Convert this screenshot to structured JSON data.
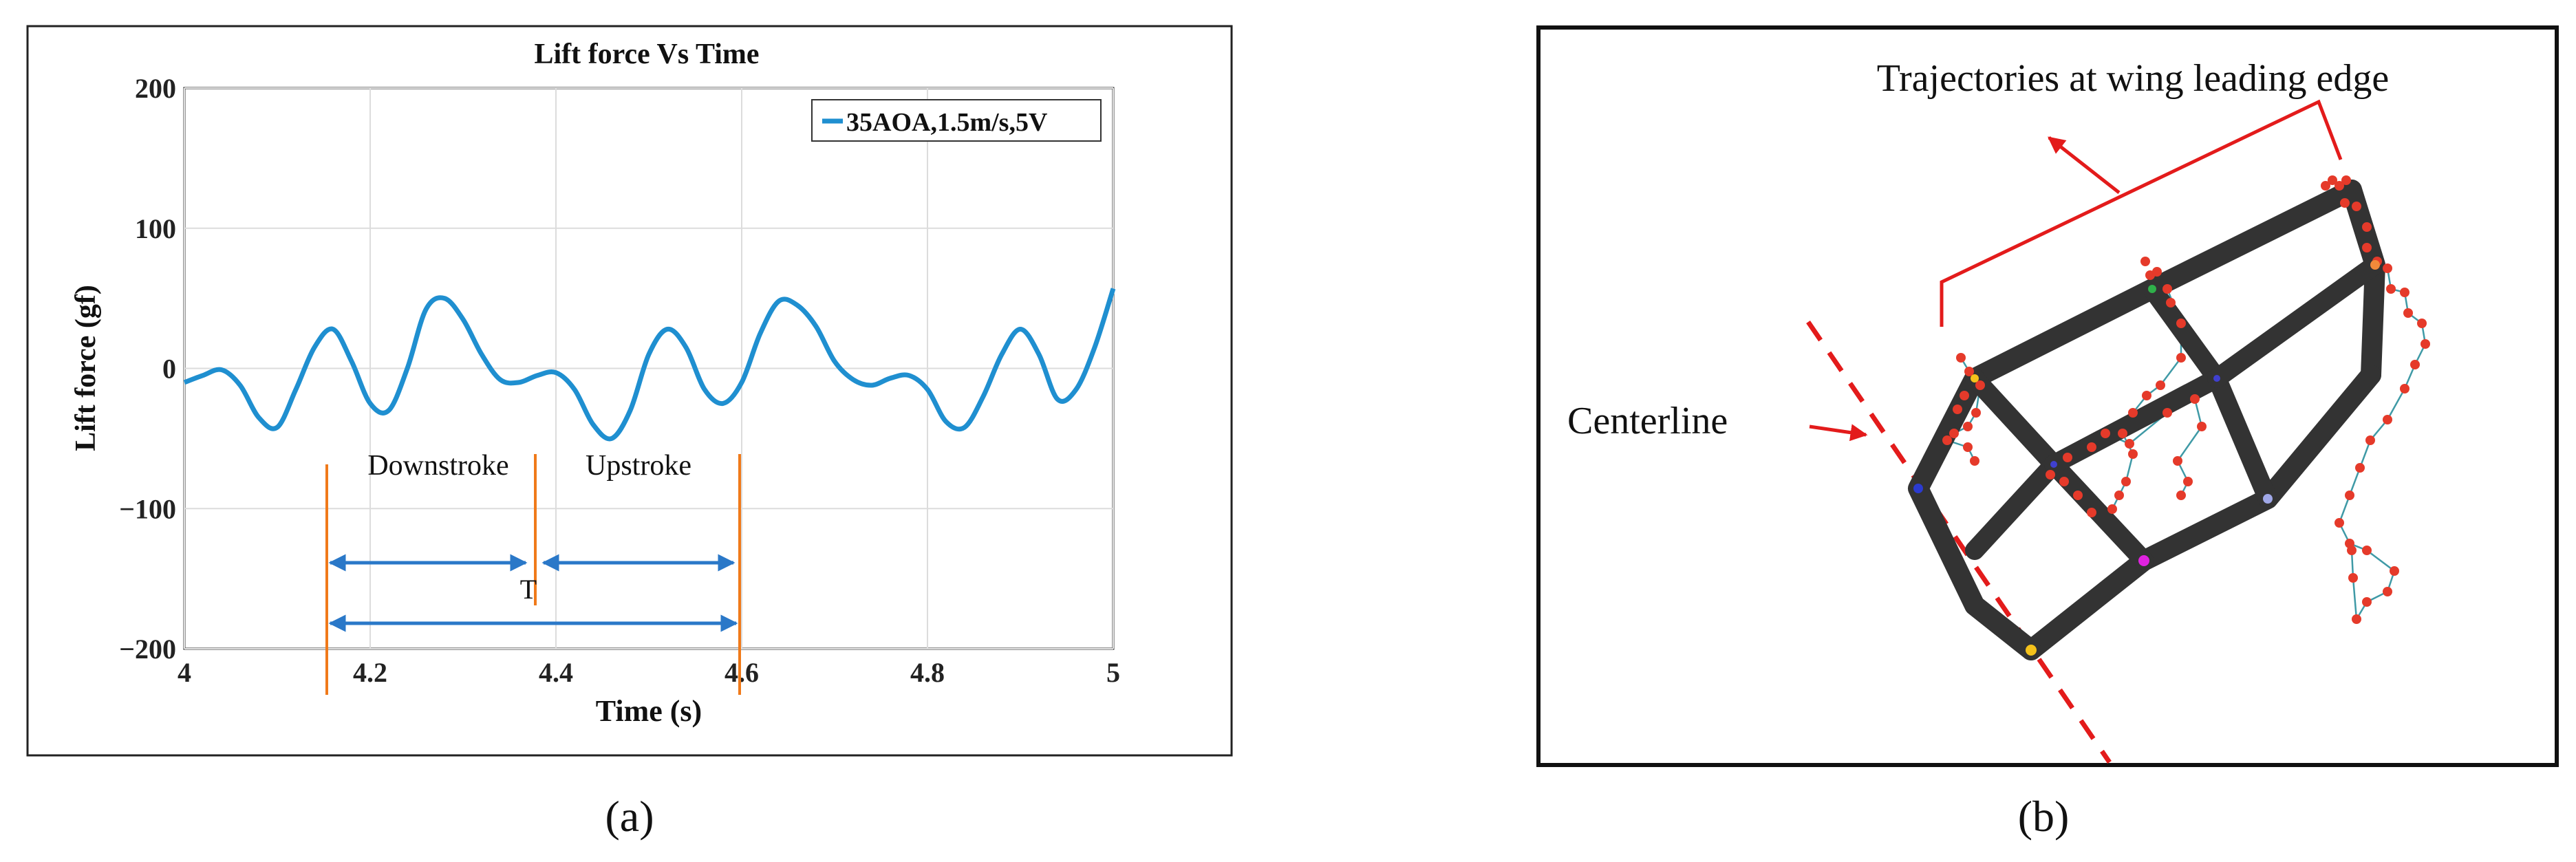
{
  "chart_data": {
    "type": "line",
    "title": "Lift force Vs Time",
    "xlabel": "Time (s)",
    "ylabel": "Lift force (gf)",
    "xlim": [
      4,
      5
    ],
    "ylim": [
      -200,
      200
    ],
    "xticks": [
      "4",
      "4.2",
      "4.4",
      "4.6",
      "4.8",
      "5"
    ],
    "yticks": [
      "200",
      "100",
      "0",
      "−100",
      "−200"
    ],
    "grid": true,
    "legend_placement": "top-right",
    "series": [
      {
        "name": "35AOA,1.5m/s,5V",
        "color": "#1f8fd0",
        "x": [
          4.0,
          4.02,
          4.04,
          4.06,
          4.08,
          4.1,
          4.12,
          4.14,
          4.16,
          4.18,
          4.2,
          4.22,
          4.24,
          4.26,
          4.28,
          4.3,
          4.32,
          4.34,
          4.36,
          4.38,
          4.4,
          4.42,
          4.44,
          4.46,
          4.48,
          4.5,
          4.52,
          4.54,
          4.56,
          4.58,
          4.6,
          4.62,
          4.64,
          4.66,
          4.68,
          4.7,
          4.72,
          4.74,
          4.76,
          4.78,
          4.8,
          4.82,
          4.84,
          4.86,
          4.88,
          4.9,
          4.92,
          4.94,
          4.96,
          4.98,
          5.0
        ],
        "y": [
          -10,
          -5,
          -1,
          -12,
          -35,
          -42,
          -15,
          15,
          28,
          5,
          -25,
          -30,
          0,
          42,
          50,
          35,
          10,
          -8,
          -10,
          -5,
          -3,
          -15,
          -40,
          -50,
          -30,
          10,
          28,
          15,
          -15,
          -25,
          -10,
          25,
          48,
          45,
          30,
          5,
          -8,
          -12,
          -7,
          -5,
          -15,
          -38,
          -42,
          -20,
          10,
          28,
          10,
          -22,
          -15,
          15,
          57
        ]
      }
    ],
    "annotations": [
      "Downstroke",
      "Upstroke",
      "T"
    ]
  },
  "panel_b": {
    "heading": "Trajectories at wing leading edge",
    "centerline_label": "Centerline"
  },
  "captions": {
    "a": "(a)",
    "b": "(b)"
  }
}
